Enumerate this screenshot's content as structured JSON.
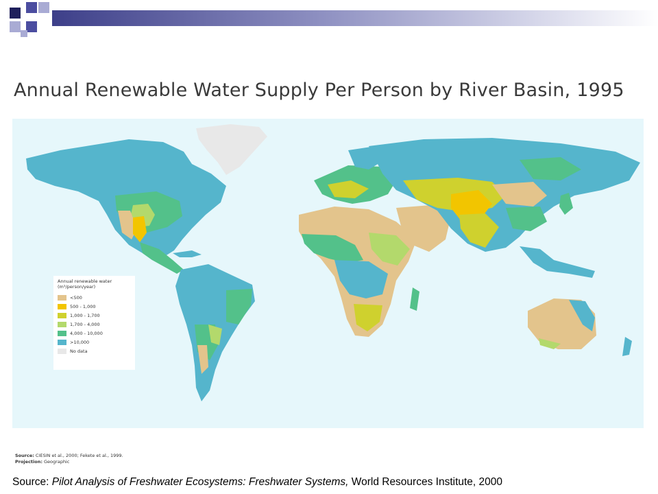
{
  "header": {
    "bar_color": "#3d3f89",
    "squares": [
      {
        "name": "square-navy",
        "color": "#1e1f5c"
      },
      {
        "name": "square-blue",
        "color": "#4b4da0"
      },
      {
        "name": "square-lavender",
        "color": "#a9abd4"
      }
    ]
  },
  "title": "Annual Renewable Water Supply Per Person by River Basin, 1995",
  "map": {
    "ocean_color": "#e6f7fb",
    "no_data_color": "#e8e8e8",
    "legend": {
      "title": "Annual renewable water (m³/person/year)",
      "items": [
        {
          "label": "<500",
          "color": "#e3c48c"
        },
        {
          "label": "500 - 1,000",
          "color": "#f2c500"
        },
        {
          "label": "1,000 - 1,700",
          "color": "#cfd12e"
        },
        {
          "label": "1,700 - 4,000",
          "color": "#b3d96c"
        },
        {
          "label": "4,000 - 10,000",
          "color": "#53c18a"
        },
        {
          "label": ">10,000",
          "color": "#55b5cc"
        },
        {
          "label": "No data",
          "color": "#e8e8e8"
        }
      ]
    },
    "notes": {
      "source_label": "Source:",
      "source_text": " CIESIN et al., 2000; Fekete et al., 1999.",
      "projection_label": "Projection:",
      "projection_text": " Geographic"
    }
  },
  "source_line": {
    "prefix": "Source: ",
    "italic": "Pilot Analysis of Freshwater Ecosystems: Freshwater Systems,",
    "suffix": " World Resources Institute, 2000"
  }
}
